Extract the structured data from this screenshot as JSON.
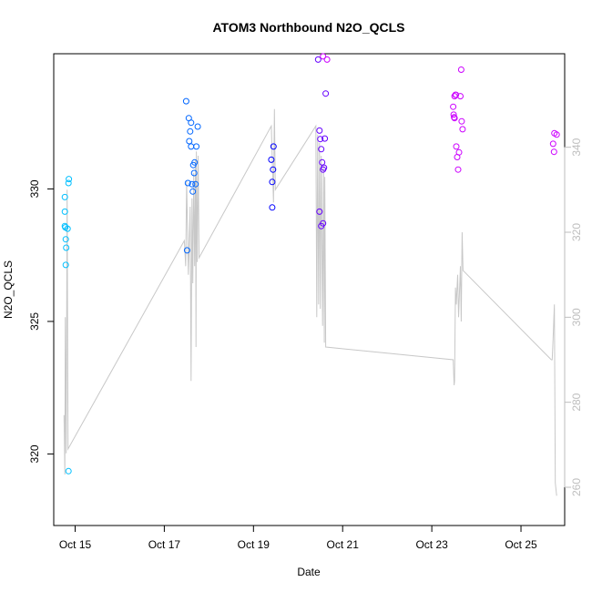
{
  "chart_data": {
    "type": "scatter",
    "title": "ATOM3 Northbound N2O_QCLS",
    "xlabel": "Date",
    "ylabel": "N2O_QCLS",
    "x_ticks": [
      "Oct 15",
      "Oct 17",
      "Oct 19",
      "Oct 21",
      "Oct 23",
      "Oct 25"
    ],
    "y_ticks": [
      "320",
      "325",
      "330"
    ],
    "y2_ticks": [
      "260",
      "280",
      "300",
      "320",
      "340"
    ],
    "xlim_days": [
      14.52,
      25.98
    ],
    "ylim": [
      317.3,
      335.1
    ],
    "y2lim": [
      251,
      362
    ],
    "colors": {
      "points": [
        "#00bfff",
        "#0066ff",
        "#0000ff",
        "#6600ff",
        "#cc00ff"
      ],
      "line": "#c8c8c8",
      "axis": "#000000",
      "y2_axis": "#bebebe"
    },
    "series": [
      {
        "name": "",
        "color_index": 0,
        "points": [
          [
            14.77,
            329.69
          ],
          [
            14.77,
            329.14
          ],
          [
            14.77,
            328.6
          ],
          [
            14.78,
            328.55
          ],
          [
            14.79,
            328.1
          ],
          [
            14.8,
            327.78
          ],
          [
            14.79,
            327.13
          ],
          [
            14.83,
            328.5
          ],
          [
            14.86,
            330.37
          ],
          [
            14.85,
            330.22
          ],
          [
            14.85,
            319.35
          ]
        ]
      },
      {
        "name": "",
        "color_index": 1,
        "points": [
          [
            17.49,
            333.31
          ],
          [
            17.51,
            327.68
          ],
          [
            17.53,
            330.22
          ],
          [
            17.55,
            332.67
          ],
          [
            17.56,
            331.8
          ],
          [
            17.58,
            332.17
          ],
          [
            17.6,
            332.5
          ],
          [
            17.6,
            331.6
          ],
          [
            17.62,
            330.18
          ],
          [
            17.64,
            329.9
          ],
          [
            17.65,
            330.9
          ],
          [
            17.67,
            330.6
          ],
          [
            17.7,
            330.18
          ],
          [
            17.72,
            331.6
          ],
          [
            17.75,
            332.35
          ],
          [
            17.68,
            331.0
          ]
        ]
      },
      {
        "name": "",
        "color_index": 2,
        "points": [
          [
            19.4,
            331.1
          ],
          [
            19.42,
            330.26
          ],
          [
            19.44,
            330.73
          ],
          [
            19.45,
            331.6
          ],
          [
            19.42,
            329.3
          ]
        ]
      },
      {
        "name": "",
        "color_index": 3,
        "points": [
          [
            20.45,
            334.88
          ],
          [
            20.48,
            332.2
          ],
          [
            20.5,
            331.88
          ],
          [
            20.52,
            331.5
          ],
          [
            20.54,
            331.0
          ],
          [
            20.56,
            330.73
          ],
          [
            20.58,
            330.8
          ],
          [
            20.6,
            331.9
          ],
          [
            20.62,
            333.6
          ],
          [
            20.48,
            329.14
          ],
          [
            20.52,
            328.6
          ],
          [
            20.56,
            328.7
          ]
        ]
      },
      {
        "name": "",
        "color_index": 4,
        "points": [
          [
            20.56,
            335.0
          ],
          [
            20.65,
            334.88
          ],
          [
            23.48,
            333.1
          ],
          [
            23.49,
            332.8
          ],
          [
            23.5,
            332.7
          ],
          [
            23.51,
            333.5
          ],
          [
            23.53,
            333.55
          ],
          [
            23.55,
            331.6
          ],
          [
            23.57,
            331.2
          ],
          [
            23.59,
            330.73
          ],
          [
            23.61,
            331.38
          ],
          [
            23.64,
            333.5
          ],
          [
            23.66,
            334.5
          ],
          [
            23.67,
            332.55
          ],
          [
            23.69,
            332.25
          ],
          [
            25.72,
            331.7
          ],
          [
            25.74,
            331.4
          ],
          [
            25.75,
            332.1
          ],
          [
            25.8,
            332.05
          ],
          [
            23.51,
            332.67
          ],
          [
            23.54,
            333.55
          ]
        ]
      }
    ],
    "line_y2": [
      [
        14.75,
        277
      ],
      [
        14.77,
        263
      ],
      [
        14.78,
        300
      ],
      [
        14.8,
        268
      ],
      [
        14.82,
        330
      ],
      [
        14.84,
        269
      ],
      [
        17.45,
        318
      ],
      [
        17.48,
        312
      ],
      [
        17.5,
        332
      ],
      [
        17.54,
        310
      ],
      [
        17.58,
        326
      ],
      [
        17.6,
        285
      ],
      [
        17.62,
        328
      ],
      [
        17.64,
        308
      ],
      [
        17.66,
        334
      ],
      [
        17.68,
        312
      ],
      [
        17.7,
        337
      ],
      [
        17.71,
        293
      ],
      [
        17.72,
        339
      ],
      [
        17.74,
        313
      ],
      [
        17.76,
        338
      ],
      [
        17.78,
        314
      ],
      [
        19.4,
        345
      ],
      [
        19.45,
        327
      ],
      [
        19.47,
        349
      ],
      [
        19.49,
        330
      ],
      [
        20.4,
        345
      ],
      [
        20.42,
        300
      ],
      [
        20.44,
        343
      ],
      [
        20.46,
        303
      ],
      [
        20.48,
        341
      ],
      [
        20.5,
        302
      ],
      [
        20.52,
        338
      ],
      [
        20.55,
        298
      ],
      [
        20.57,
        336
      ],
      [
        20.59,
        294
      ],
      [
        20.6,
        333
      ],
      [
        20.62,
        293
      ],
      [
        23.48,
        290
      ],
      [
        23.5,
        284
      ],
      [
        23.51,
        285
      ],
      [
        23.53,
        307
      ],
      [
        23.55,
        303
      ],
      [
        23.58,
        310
      ],
      [
        23.6,
        300
      ],
      [
        23.64,
        312
      ],
      [
        23.66,
        299
      ],
      [
        23.68,
        320
      ],
      [
        23.7,
        311
      ],
      [
        25.68,
        290
      ],
      [
        25.7,
        290
      ],
      [
        25.72,
        295
      ],
      [
        25.75,
        303
      ],
      [
        25.77,
        261
      ],
      [
        25.8,
        258
      ]
    ]
  }
}
